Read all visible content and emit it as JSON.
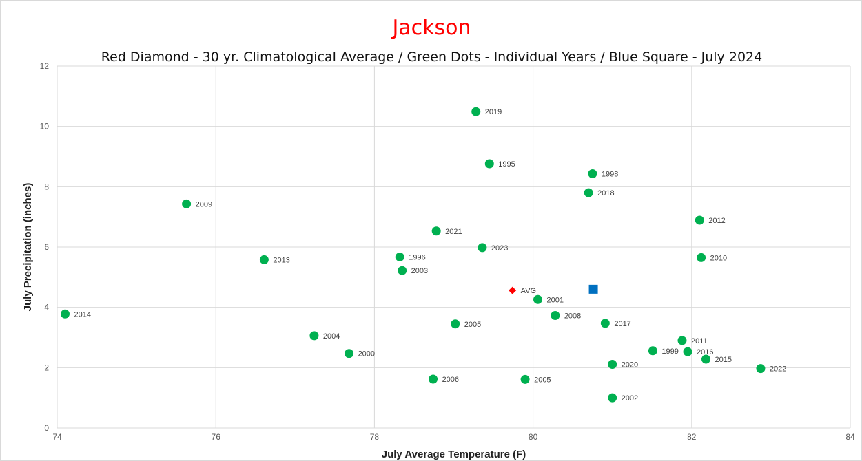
{
  "chart_data": {
    "type": "scatter",
    "title": "Jackson",
    "subtitle": "Red Diamond - 30 yr. Climatological Average / Green Dots - Individual Years / Blue Square - July 2024",
    "xlabel": "July Average Temperature (F)",
    "ylabel": "July Precipitation (inches)",
    "xlim": [
      74,
      84
    ],
    "ylim": [
      0,
      12
    ],
    "xticks": [
      74,
      76,
      78,
      80,
      82,
      84
    ],
    "yticks": [
      0,
      2,
      4,
      6,
      8,
      10,
      12
    ],
    "grid": true,
    "legend": "none",
    "colors": {
      "title": "#ff0000",
      "years": "#00b050",
      "average": "#ff0000",
      "current": "#0070c0",
      "grid": "#d9d9d9"
    },
    "series": [
      {
        "marker": "circle",
        "color": "#00b050",
        "points": [
          {
            "x": 74.1,
            "y": 3.78,
            "label": "2014"
          },
          {
            "x": 75.63,
            "y": 7.43,
            "label": "2009"
          },
          {
            "x": 76.61,
            "y": 5.58,
            "label": "2013"
          },
          {
            "x": 77.24,
            "y": 3.06,
            "label": "2004"
          },
          {
            "x": 77.68,
            "y": 2.47,
            "label": "2000"
          },
          {
            "x": 78.32,
            "y": 5.67,
            "label": "1996"
          },
          {
            "x": 78.35,
            "y": 5.22,
            "label": "2003"
          },
          {
            "x": 78.74,
            "y": 1.62,
            "label": "2006"
          },
          {
            "x": 78.78,
            "y": 6.53,
            "label": "2021"
          },
          {
            "x": 79.02,
            "y": 3.45,
            "label": "2005"
          },
          {
            "x": 79.28,
            "y": 10.49,
            "label": "2019"
          },
          {
            "x": 79.36,
            "y": 5.98,
            "label": "2023"
          },
          {
            "x": 79.45,
            "y": 8.76,
            "label": "1995"
          },
          {
            "x": 79.9,
            "y": 1.61,
            "label": "2005"
          },
          {
            "x": 80.06,
            "y": 4.26,
            "label": "2001"
          },
          {
            "x": 80.28,
            "y": 3.73,
            "label": "2008"
          },
          {
            "x": 80.7,
            "y": 7.8,
            "label": "2018"
          },
          {
            "x": 80.75,
            "y": 8.43,
            "label": "1998"
          },
          {
            "x": 80.91,
            "y": 3.47,
            "label": "2017"
          },
          {
            "x": 81.0,
            "y": 2.11,
            "label": "2020"
          },
          {
            "x": 81.0,
            "y": 1.0,
            "label": "2002"
          },
          {
            "x": 81.51,
            "y": 2.56,
            "label": "1999"
          },
          {
            "x": 81.88,
            "y": 2.9,
            "label": "2011"
          },
          {
            "x": 81.95,
            "y": 2.53,
            "label": "2016"
          },
          {
            "x": 82.1,
            "y": 6.89,
            "label": "2012"
          },
          {
            "x": 82.12,
            "y": 5.65,
            "label": "2010"
          },
          {
            "x": 82.18,
            "y": 2.28,
            "label": "2015"
          },
          {
            "x": 82.87,
            "y": 1.97,
            "label": "2022"
          }
        ]
      },
      {
        "marker": "diamond",
        "color": "#ff0000",
        "points": [
          {
            "x": 79.74,
            "y": 4.56,
            "label": "AVG"
          }
        ]
      },
      {
        "marker": "square",
        "color": "#0070c0",
        "points": [
          {
            "x": 80.76,
            "y": 4.6,
            "label": ""
          }
        ]
      }
    ]
  }
}
